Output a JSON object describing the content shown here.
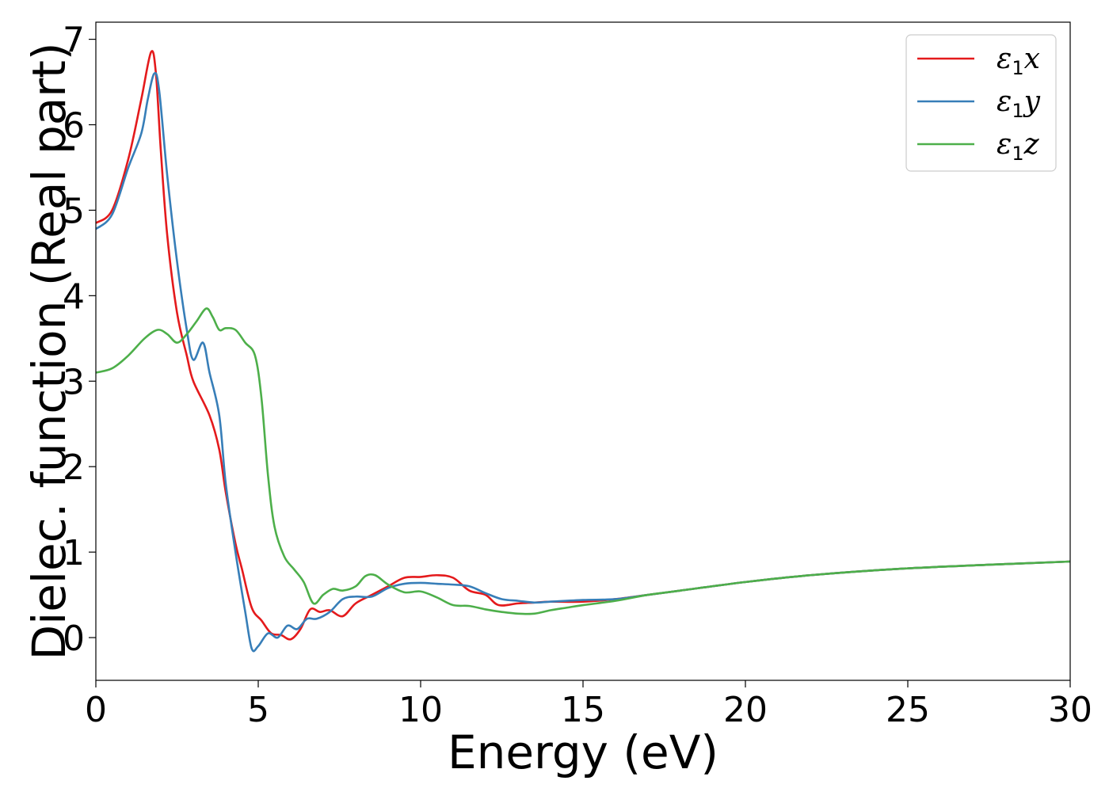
{
  "chart_data": {
    "type": "line",
    "xlabel": "Energy (eV)",
    "ylabel": "Dielec. function (Real part)",
    "xlim": [
      0,
      30
    ],
    "ylim": [
      -0.5,
      7.2
    ],
    "xticks": [
      0,
      5,
      10,
      15,
      20,
      25,
      30
    ],
    "yticks": [
      0,
      1,
      2,
      3,
      4,
      5,
      6,
      7
    ],
    "grid": false,
    "legend_position": "top-right",
    "series": [
      {
        "name": "ε₁x",
        "label_main": "ε",
        "label_sub": "1",
        "label_tail": "x",
        "color": "#e41a1c",
        "points": [
          [
            0,
            4.85
          ],
          [
            0.5,
            5.0
          ],
          [
            1.0,
            5.6
          ],
          [
            1.4,
            6.3
          ],
          [
            1.7,
            6.85
          ],
          [
            1.85,
            6.6
          ],
          [
            2.0,
            5.7
          ],
          [
            2.2,
            4.7
          ],
          [
            2.5,
            3.8
          ],
          [
            2.8,
            3.3
          ],
          [
            3.0,
            3.0
          ],
          [
            3.5,
            2.6
          ],
          [
            3.8,
            2.2
          ],
          [
            4.0,
            1.7
          ],
          [
            4.3,
            1.1
          ],
          [
            4.5,
            0.8
          ],
          [
            4.8,
            0.35
          ],
          [
            5.1,
            0.2
          ],
          [
            5.4,
            0.05
          ],
          [
            5.7,
            0.03
          ],
          [
            6.0,
            -0.02
          ],
          [
            6.3,
            0.1
          ],
          [
            6.6,
            0.33
          ],
          [
            6.9,
            0.3
          ],
          [
            7.2,
            0.32
          ],
          [
            7.6,
            0.25
          ],
          [
            8.0,
            0.4
          ],
          [
            8.5,
            0.5
          ],
          [
            9.0,
            0.6
          ],
          [
            9.5,
            0.7
          ],
          [
            10.0,
            0.71
          ],
          [
            10.5,
            0.73
          ],
          [
            11.0,
            0.7
          ],
          [
            11.5,
            0.55
          ],
          [
            12.0,
            0.5
          ],
          [
            12.4,
            0.38
          ],
          [
            13.0,
            0.4
          ],
          [
            13.5,
            0.41
          ],
          [
            14.0,
            0.42
          ],
          [
            15.0,
            0.42
          ],
          [
            16.0,
            0.45
          ],
          [
            17.0,
            0.5
          ],
          [
            18.0,
            0.55
          ],
          [
            20.0,
            0.65
          ],
          [
            22.0,
            0.73
          ],
          [
            25.0,
            0.81
          ],
          [
            28.0,
            0.86
          ],
          [
            30.0,
            0.89
          ]
        ]
      },
      {
        "name": "ε₁y",
        "label_main": "ε",
        "label_sub": "1",
        "label_tail": "y",
        "color": "#377eb8",
        "points": [
          [
            0,
            4.78
          ],
          [
            0.5,
            4.95
          ],
          [
            1.0,
            5.5
          ],
          [
            1.4,
            5.9
          ],
          [
            1.6,
            6.3
          ],
          [
            1.8,
            6.6
          ],
          [
            1.95,
            6.4
          ],
          [
            2.2,
            5.4
          ],
          [
            2.5,
            4.4
          ],
          [
            2.8,
            3.6
          ],
          [
            3.0,
            3.25
          ],
          [
            3.3,
            3.45
          ],
          [
            3.5,
            3.1
          ],
          [
            3.8,
            2.6
          ],
          [
            4.0,
            1.8
          ],
          [
            4.3,
            1.0
          ],
          [
            4.6,
            0.3
          ],
          [
            4.8,
            -0.13
          ],
          [
            5.0,
            -0.1
          ],
          [
            5.3,
            0.05
          ],
          [
            5.6,
            0.0
          ],
          [
            5.9,
            0.14
          ],
          [
            6.2,
            0.1
          ],
          [
            6.5,
            0.22
          ],
          [
            6.8,
            0.22
          ],
          [
            7.2,
            0.3
          ],
          [
            7.6,
            0.45
          ],
          [
            8.0,
            0.48
          ],
          [
            8.5,
            0.48
          ],
          [
            9.0,
            0.58
          ],
          [
            9.5,
            0.63
          ],
          [
            10.0,
            0.64
          ],
          [
            10.5,
            0.63
          ],
          [
            11.0,
            0.62
          ],
          [
            11.5,
            0.6
          ],
          [
            12.0,
            0.52
          ],
          [
            12.5,
            0.45
          ],
          [
            13.0,
            0.43
          ],
          [
            13.5,
            0.41
          ],
          [
            14.0,
            0.42
          ],
          [
            15.0,
            0.44
          ],
          [
            16.0,
            0.45
          ],
          [
            17.0,
            0.5
          ],
          [
            18.0,
            0.55
          ],
          [
            20.0,
            0.65
          ],
          [
            22.0,
            0.73
          ],
          [
            25.0,
            0.81
          ],
          [
            28.0,
            0.86
          ],
          [
            30.0,
            0.89
          ]
        ]
      },
      {
        "name": "ε₁z",
        "label_main": "ε",
        "label_sub": "1",
        "label_tail": "z",
        "color": "#4daf4a",
        "points": [
          [
            0,
            3.1
          ],
          [
            0.5,
            3.15
          ],
          [
            1.0,
            3.3
          ],
          [
            1.5,
            3.5
          ],
          [
            1.9,
            3.6
          ],
          [
            2.2,
            3.55
          ],
          [
            2.5,
            3.45
          ],
          [
            2.8,
            3.55
          ],
          [
            3.1,
            3.7
          ],
          [
            3.4,
            3.85
          ],
          [
            3.6,
            3.75
          ],
          [
            3.8,
            3.6
          ],
          [
            4.0,
            3.62
          ],
          [
            4.3,
            3.6
          ],
          [
            4.6,
            3.45
          ],
          [
            4.9,
            3.3
          ],
          [
            5.1,
            2.8
          ],
          [
            5.3,
            1.9
          ],
          [
            5.5,
            1.3
          ],
          [
            5.8,
            0.95
          ],
          [
            6.1,
            0.8
          ],
          [
            6.4,
            0.65
          ],
          [
            6.7,
            0.4
          ],
          [
            7.0,
            0.5
          ],
          [
            7.3,
            0.57
          ],
          [
            7.6,
            0.55
          ],
          [
            8.0,
            0.6
          ],
          [
            8.3,
            0.72
          ],
          [
            8.6,
            0.73
          ],
          [
            9.0,
            0.62
          ],
          [
            9.5,
            0.53
          ],
          [
            10.0,
            0.54
          ],
          [
            10.5,
            0.47
          ],
          [
            11.0,
            0.38
          ],
          [
            11.5,
            0.37
          ],
          [
            12.0,
            0.33
          ],
          [
            12.5,
            0.3
          ],
          [
            13.0,
            0.28
          ],
          [
            13.5,
            0.28
          ],
          [
            14.0,
            0.32
          ],
          [
            14.5,
            0.35
          ],
          [
            15.0,
            0.38
          ],
          [
            16.0,
            0.43
          ],
          [
            17.0,
            0.5
          ],
          [
            18.0,
            0.55
          ],
          [
            20.0,
            0.65
          ],
          [
            22.0,
            0.73
          ],
          [
            25.0,
            0.81
          ],
          [
            28.0,
            0.86
          ],
          [
            30.0,
            0.89
          ]
        ]
      }
    ]
  }
}
